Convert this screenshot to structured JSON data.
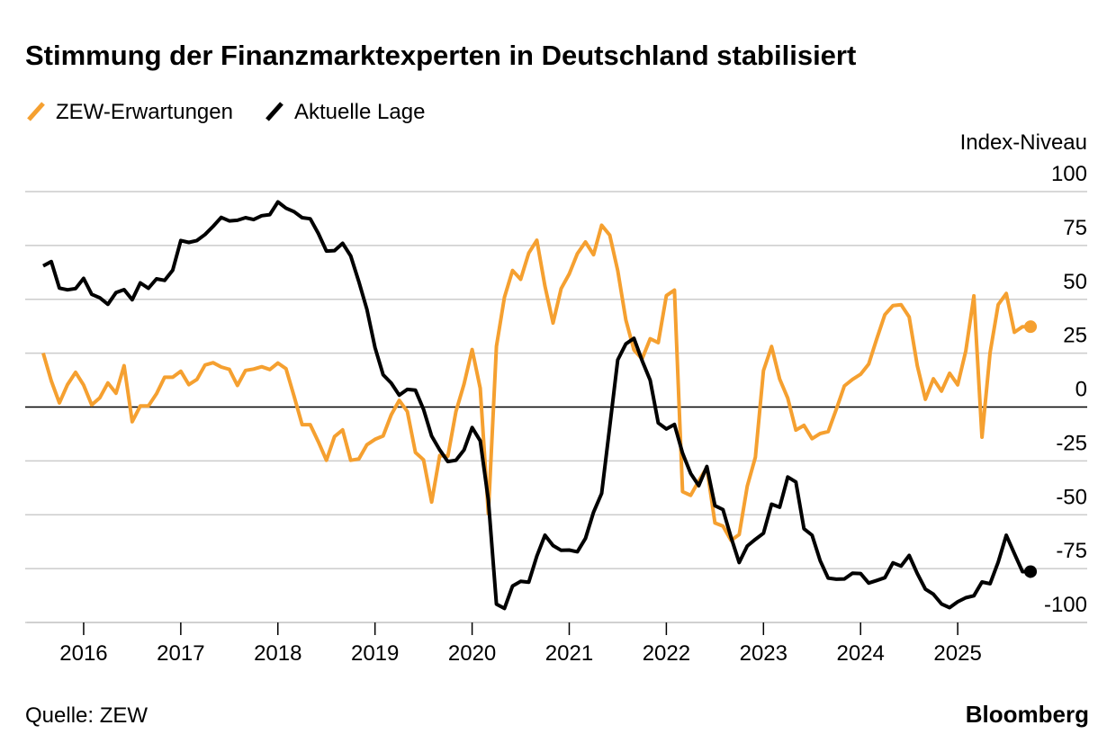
{
  "chart_data": {
    "type": "line",
    "title": "Stimmung der Finanzmarktexperten in Deutschland stabilisiert",
    "y_label": "Index-Niveau",
    "source": "Quelle: ZEW",
    "brand": "Bloomberg",
    "x": [
      "2015-08",
      "2015-09",
      "2015-10",
      "2015-11",
      "2015-12",
      "2016-01",
      "2016-02",
      "2016-03",
      "2016-04",
      "2016-05",
      "2016-06",
      "2016-07",
      "2016-08",
      "2016-09",
      "2016-10",
      "2016-11",
      "2016-12",
      "2017-01",
      "2017-02",
      "2017-03",
      "2017-04",
      "2017-05",
      "2017-06",
      "2017-07",
      "2017-08",
      "2017-09",
      "2017-10",
      "2017-11",
      "2017-12",
      "2018-01",
      "2018-02",
      "2018-03",
      "2018-04",
      "2018-05",
      "2018-06",
      "2018-07",
      "2018-08",
      "2018-09",
      "2018-10",
      "2018-11",
      "2018-12",
      "2019-01",
      "2019-02",
      "2019-03",
      "2019-04",
      "2019-05",
      "2019-06",
      "2019-07",
      "2019-08",
      "2019-09",
      "2019-10",
      "2019-11",
      "2019-12",
      "2020-01",
      "2020-02",
      "2020-03",
      "2020-04",
      "2020-05",
      "2020-06",
      "2020-07",
      "2020-08",
      "2020-09",
      "2020-10",
      "2020-11",
      "2020-12",
      "2021-01",
      "2021-02",
      "2021-03",
      "2021-04",
      "2021-05",
      "2021-06",
      "2021-07",
      "2021-08",
      "2021-09",
      "2021-10",
      "2021-11",
      "2021-12",
      "2022-01",
      "2022-02",
      "2022-03",
      "2022-04",
      "2022-05",
      "2022-06",
      "2022-07",
      "2022-08",
      "2022-09",
      "2022-10",
      "2022-11",
      "2022-12",
      "2023-01",
      "2023-02",
      "2023-03",
      "2023-04",
      "2023-05",
      "2023-06",
      "2023-07",
      "2023-08",
      "2023-09",
      "2023-10",
      "2023-11",
      "2023-12",
      "2024-01",
      "2024-02",
      "2024-03",
      "2024-04",
      "2024-05",
      "2024-06",
      "2024-07",
      "2024-08",
      "2024-09",
      "2024-10",
      "2024-11",
      "2024-12",
      "2025-01",
      "2025-02",
      "2025-03",
      "2025-04",
      "2025-05",
      "2025-06",
      "2025-07",
      "2025-08",
      "2025-09",
      "2025-10"
    ],
    "series": [
      {
        "name": "ZEW-Erwartungen",
        "color": "#f5a030",
        "values": [
          25.0,
          12.1,
          1.9,
          10.4,
          16.1,
          10.2,
          1.0,
          4.3,
          11.2,
          6.4,
          19.2,
          -6.8,
          0.5,
          0.5,
          6.2,
          13.8,
          13.8,
          16.6,
          10.4,
          12.8,
          19.5,
          20.6,
          18.6,
          17.5,
          10.0,
          17.0,
          17.6,
          18.7,
          17.4,
          20.4,
          17.8,
          5.1,
          -8.2,
          -8.2,
          -16.1,
          -24.7,
          -13.7,
          -10.6,
          -24.7,
          -24.1,
          -17.5,
          -15.0,
          -13.4,
          -3.6,
          3.1,
          -2.1,
          -21.1,
          -24.5,
          -44.1,
          -22.5,
          -22.8,
          -2.1,
          10.7,
          26.7,
          8.7,
          -49.5,
          28.2,
          51.0,
          63.4,
          59.3,
          71.5,
          77.4,
          56.1,
          39.0,
          55.0,
          61.8,
          71.2,
          76.6,
          70.7,
          84.4,
          79.8,
          63.3,
          40.4,
          26.5,
          22.3,
          31.7,
          29.9,
          51.7,
          54.3,
          -39.3,
          -41.0,
          -34.3,
          -28.0,
          -53.8,
          -55.3,
          -61.9,
          -59.2,
          -36.7,
          -23.3,
          16.9,
          28.1,
          13.0,
          4.1,
          -10.7,
          -8.5,
          -14.7,
          -12.3,
          -11.4,
          -1.1,
          9.8,
          12.8,
          15.2,
          19.9,
          31.7,
          42.9,
          47.1,
          47.5,
          41.8,
          19.2,
          3.6,
          13.1,
          7.4,
          15.7,
          10.3,
          26.0,
          51.6,
          -14.0,
          25.2,
          47.5,
          52.7,
          34.7,
          37.3,
          37.3
        ]
      },
      {
        "name": "Aktuelle Lage",
        "color": "#000000",
        "values": [
          65.5,
          67.5,
          55.2,
          54.4,
          55.0,
          59.7,
          52.3,
          50.7,
          47.7,
          53.1,
          54.5,
          49.8,
          57.6,
          55.1,
          59.5,
          58.8,
          63.5,
          77.3,
          76.4,
          77.3,
          80.1,
          83.9,
          88.0,
          86.4,
          86.7,
          87.9,
          87.0,
          88.8,
          89.3,
          95.2,
          92.3,
          90.7,
          87.9,
          87.4,
          80.6,
          72.4,
          72.6,
          76.0,
          70.1,
          58.2,
          45.3,
          27.6,
          15.0,
          11.1,
          5.5,
          8.2,
          7.8,
          -1.1,
          -13.5,
          -19.9,
          -25.3,
          -24.7,
          -19.9,
          -9.5,
          -15.7,
          -43.1,
          -91.5,
          -93.5,
          -83.1,
          -80.9,
          -81.3,
          -69.2,
          -59.5,
          -64.3,
          -66.5,
          -66.4,
          -67.2,
          -61.0,
          -48.8,
          -40.1,
          -9.1,
          21.9,
          29.3,
          31.9,
          21.6,
          12.5,
          -7.4,
          -10.2,
          -8.1,
          -21.4,
          -30.8,
          -36.5,
          -27.6,
          -45.8,
          -47.6,
          -60.5,
          -72.2,
          -64.5,
          -61.4,
          -58.6,
          -45.1,
          -46.5,
          -32.5,
          -34.8,
          -56.5,
          -59.5,
          -71.3,
          -79.4,
          -79.9,
          -79.8,
          -77.1,
          -77.3,
          -81.7,
          -80.5,
          -79.2,
          -72.3,
          -73.8,
          -68.9,
          -77.3,
          -84.5,
          -86.9,
          -91.4,
          -93.1,
          -90.4,
          -88.5,
          -87.6,
          -81.2,
          -82.0,
          -72.0,
          -59.5,
          -68.0,
          -76.4,
          -76.4
        ]
      }
    ],
    "xlim": [
      "2015-06",
      "2026-05"
    ],
    "xticks": [
      2016,
      2017,
      2018,
      2019,
      2020,
      2021,
      2022,
      2023,
      2024,
      2025
    ],
    "ylim": [
      -100,
      100
    ],
    "yticks": [
      100,
      75,
      50,
      25,
      0,
      -25,
      -50,
      -75,
      -100
    ],
    "grid": true,
    "legend": "top-left"
  }
}
